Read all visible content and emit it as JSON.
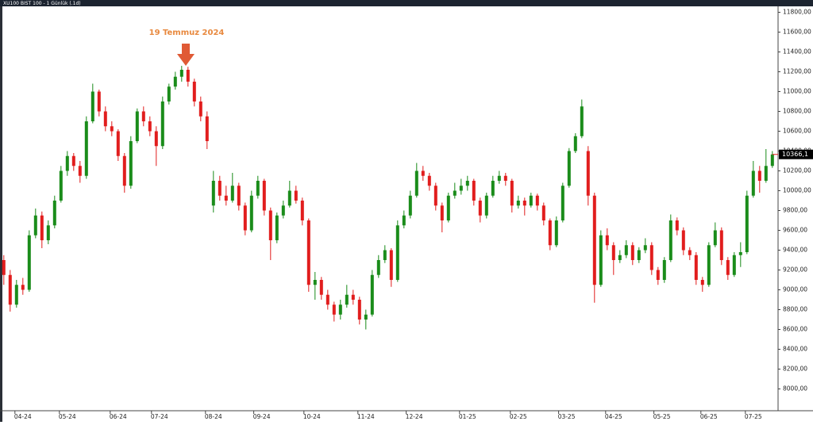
{
  "chart_data": {
    "type": "candlestick",
    "title": "XU100 BIST 100 - 1 Günlük (.1d)",
    "annotation": "19 Temmuz 2024",
    "up_color": "#1a8c1a",
    "down_color": "#e11d1d",
    "xlim": [
      -0.6,
      121.9
    ],
    "xticks": [
      {
        "value": 3,
        "label": "04-24"
      },
      {
        "value": 10,
        "label": "05-24"
      },
      {
        "value": 18,
        "label": "06-24"
      },
      {
        "value": 24.5,
        "label": "07-24"
      },
      {
        "value": 33,
        "label": "08-24"
      },
      {
        "value": 40.6,
        "label": "09-24"
      },
      {
        "value": 48.5,
        "label": "10-24"
      },
      {
        "value": 57,
        "label": "11-24"
      },
      {
        "value": 64.6,
        "label": "12-24"
      },
      {
        "value": 73,
        "label": "01-25"
      },
      {
        "value": 81,
        "label": "02-25"
      },
      {
        "value": 88.6,
        "label": "03-25"
      },
      {
        "value": 96,
        "label": "04-25"
      },
      {
        "value": 103.6,
        "label": "05-25"
      },
      {
        "value": 111,
        "label": "06-25"
      },
      {
        "value": 118,
        "label": "07-25"
      }
    ],
    "ylim": [
      7780,
      11860
    ],
    "yticks": [
      {
        "value": 8000,
        "label": "8000,00"
      },
      {
        "value": 8200,
        "label": "8200,00"
      },
      {
        "value": 8400,
        "label": "8400,00"
      },
      {
        "value": 8600,
        "label": "8600,00"
      },
      {
        "value": 8800,
        "label": "8800,00"
      },
      {
        "value": 9000,
        "label": "9000,00"
      },
      {
        "value": 9200,
        "label": "9200,00"
      },
      {
        "value": 9400,
        "label": "9400,00"
      },
      {
        "value": 9600,
        "label": "9600,00"
      },
      {
        "value": 9800,
        "label": "9800,00"
      },
      {
        "value": 10000,
        "label": "10000,00"
      },
      {
        "value": 10200,
        "label": "10200,00"
      },
      {
        "value": 10400,
        "label": "10400,00"
      },
      {
        "value": 10600,
        "label": "10600,00"
      },
      {
        "value": 10800,
        "label": "10800,00"
      },
      {
        "value": 11000,
        "label": "11000,00"
      },
      {
        "value": 11200,
        "label": "11200,00"
      },
      {
        "value": 11400,
        "label": "11400,00"
      },
      {
        "value": 11600,
        "label": "11600,00"
      },
      {
        "value": 11800,
        "label": "11800,00"
      }
    ],
    "last_price": {
      "value": 10366.1,
      "label": "10366,1"
    },
    "candles": [
      [
        9300,
        9350,
        9050,
        9150
      ],
      [
        9150,
        9200,
        8780,
        8850
      ],
      [
        8850,
        9100,
        8820,
        9050
      ],
      [
        9050,
        9120,
        8950,
        9000
      ],
      [
        9000,
        9600,
        8980,
        9550
      ],
      [
        9550,
        9820,
        9520,
        9750
      ],
      [
        9750,
        9790,
        9420,
        9500
      ],
      [
        9500,
        9700,
        9460,
        9650
      ],
      [
        9650,
        9950,
        9620,
        9900
      ],
      [
        9900,
        10250,
        9880,
        10200
      ],
      [
        10200,
        10400,
        10150,
        10350
      ],
      [
        10350,
        10380,
        10200,
        10250
      ],
      [
        10250,
        10300,
        10080,
        10150
      ],
      [
        10150,
        10750,
        10120,
        10700
      ],
      [
        10700,
        11080,
        10680,
        11000
      ],
      [
        11000,
        11020,
        10750,
        10800
      ],
      [
        10800,
        10850,
        10600,
        10650
      ],
      [
        10650,
        10700,
        10550,
        10600
      ],
      [
        10600,
        10620,
        10300,
        10350
      ],
      [
        10350,
        10380,
        9980,
        10050
      ],
      [
        10050,
        10550,
        10020,
        10500
      ],
      [
        10500,
        10830,
        10480,
        10800
      ],
      [
        10800,
        10850,
        10650,
        10700
      ],
      [
        10700,
        10750,
        10550,
        10600
      ],
      [
        10600,
        10650,
        10250,
        10450
      ],
      [
        10450,
        10950,
        10420,
        10900
      ],
      [
        10900,
        11080,
        10870,
        11050
      ],
      [
        11050,
        11200,
        11020,
        11150
      ],
      [
        11150,
        11260,
        11100,
        11220
      ],
      [
        11220,
        11250,
        11050,
        11100
      ],
      [
        11100,
        11130,
        10850,
        10900
      ],
      [
        10900,
        10950,
        10700,
        10750
      ],
      [
        10750,
        10800,
        10420,
        10500
      ],
      [
        9850,
        10200,
        9780,
        10100
      ],
      [
        10100,
        10150,
        9900,
        9950
      ],
      [
        9950,
        10050,
        9850,
        9900
      ],
      [
        9900,
        10180,
        9880,
        10050
      ],
      [
        10050,
        10080,
        9800,
        9850
      ],
      [
        9850,
        9880,
        9550,
        9600
      ],
      [
        9600,
        10000,
        9580,
        9950
      ],
      [
        9950,
        10150,
        9920,
        10100
      ],
      [
        10100,
        10120,
        9750,
        9800
      ],
      [
        9800,
        9830,
        9300,
        9500
      ],
      [
        9500,
        9780,
        9470,
        9750
      ],
      [
        9750,
        9900,
        9720,
        9850
      ],
      [
        9850,
        10100,
        9830,
        10000
      ],
      [
        10000,
        10050,
        9870,
        9900
      ],
      [
        9900,
        9930,
        9650,
        9700
      ],
      [
        9700,
        9720,
        8980,
        9050
      ],
      [
        9050,
        9180,
        8900,
        9100
      ],
      [
        9100,
        9130,
        8900,
        8950
      ],
      [
        8950,
        9000,
        8800,
        8850
      ],
      [
        8850,
        8880,
        8680,
        8750
      ],
      [
        8750,
        8900,
        8700,
        8850
      ],
      [
        8850,
        9050,
        8820,
        8950
      ],
      [
        8950,
        9000,
        8850,
        8900
      ],
      [
        8900,
        8930,
        8650,
        8700
      ],
      [
        8700,
        8800,
        8600,
        8750
      ],
      [
        8750,
        9200,
        8730,
        9150
      ],
      [
        9150,
        9350,
        9120,
        9300
      ],
      [
        9300,
        9450,
        9270,
        9400
      ],
      [
        9400,
        9420,
        9030,
        9100
      ],
      [
        9100,
        9700,
        9080,
        9650
      ],
      [
        9650,
        9800,
        9620,
        9750
      ],
      [
        9750,
        10000,
        9720,
        9950
      ],
      [
        9950,
        10280,
        9930,
        10200
      ],
      [
        10200,
        10250,
        10100,
        10150
      ],
      [
        10150,
        10180,
        10000,
        10050
      ],
      [
        10050,
        10080,
        9800,
        9850
      ],
      [
        9850,
        9880,
        9580,
        9700
      ],
      [
        9700,
        9980,
        9680,
        9950
      ],
      [
        9950,
        10080,
        9920,
        10000
      ],
      [
        10000,
        10120,
        9960,
        10050
      ],
      [
        10050,
        10150,
        10000,
        10100
      ],
      [
        10100,
        10120,
        9850,
        9900
      ],
      [
        9900,
        9930,
        9680,
        9750
      ],
      [
        9750,
        9980,
        9720,
        9950
      ],
      [
        9950,
        10150,
        9930,
        10100
      ],
      [
        10100,
        10200,
        10070,
        10150
      ],
      [
        10150,
        10180,
        10050,
        10100
      ],
      [
        10100,
        10120,
        9780,
        9850
      ],
      [
        9850,
        9950,
        9820,
        9900
      ],
      [
        9900,
        9930,
        9750,
        9850
      ],
      [
        9850,
        9980,
        9830,
        9950
      ],
      [
        9950,
        9970,
        9800,
        9850
      ],
      [
        9850,
        9880,
        9650,
        9700
      ],
      [
        9700,
        9720,
        9400,
        9450
      ],
      [
        9450,
        9740,
        9430,
        9700
      ],
      [
        9700,
        10080,
        9680,
        10050
      ],
      [
        10050,
        10430,
        10030,
        10400
      ],
      [
        10400,
        10580,
        10380,
        10550
      ],
      [
        10550,
        10920,
        10530,
        10850
      ],
      [
        10400,
        10450,
        9850,
        9950
      ],
      [
        9950,
        9980,
        8870,
        9050
      ],
      [
        9050,
        9600,
        9030,
        9550
      ],
      [
        9550,
        9620,
        9400,
        9450
      ],
      [
        9450,
        9480,
        9150,
        9300
      ],
      [
        9300,
        9400,
        9270,
        9350
      ],
      [
        9350,
        9500,
        9320,
        9450
      ],
      [
        9450,
        9480,
        9250,
        9300
      ],
      [
        9300,
        9430,
        9270,
        9400
      ],
      [
        9400,
        9520,
        9370,
        9450
      ],
      [
        9450,
        9480,
        9150,
        9200
      ],
      [
        9200,
        9230,
        9050,
        9100
      ],
      [
        9100,
        9330,
        9070,
        9300
      ],
      [
        9300,
        9760,
        9280,
        9700
      ],
      [
        9700,
        9730,
        9550,
        9600
      ],
      [
        9600,
        9630,
        9350,
        9400
      ],
      [
        9400,
        9430,
        9300,
        9350
      ],
      [
        9350,
        9380,
        9050,
        9100
      ],
      [
        9100,
        9130,
        8980,
        9050
      ],
      [
        9050,
        9480,
        9030,
        9450
      ],
      [
        9450,
        9680,
        9430,
        9600
      ],
      [
        9600,
        9630,
        9250,
        9300
      ],
      [
        9300,
        9330,
        9100,
        9150
      ],
      [
        9150,
        9380,
        9130,
        9350
      ],
      [
        9350,
        9480,
        9230,
        9380
      ],
      [
        9380,
        10000,
        9360,
        9950
      ],
      [
        9950,
        10300,
        9930,
        10200
      ],
      [
        10200,
        10250,
        9980,
        10100
      ],
      [
        10100,
        10420,
        10080,
        10250
      ],
      [
        10250,
        10400,
        10230,
        10366.1
      ]
    ]
  }
}
